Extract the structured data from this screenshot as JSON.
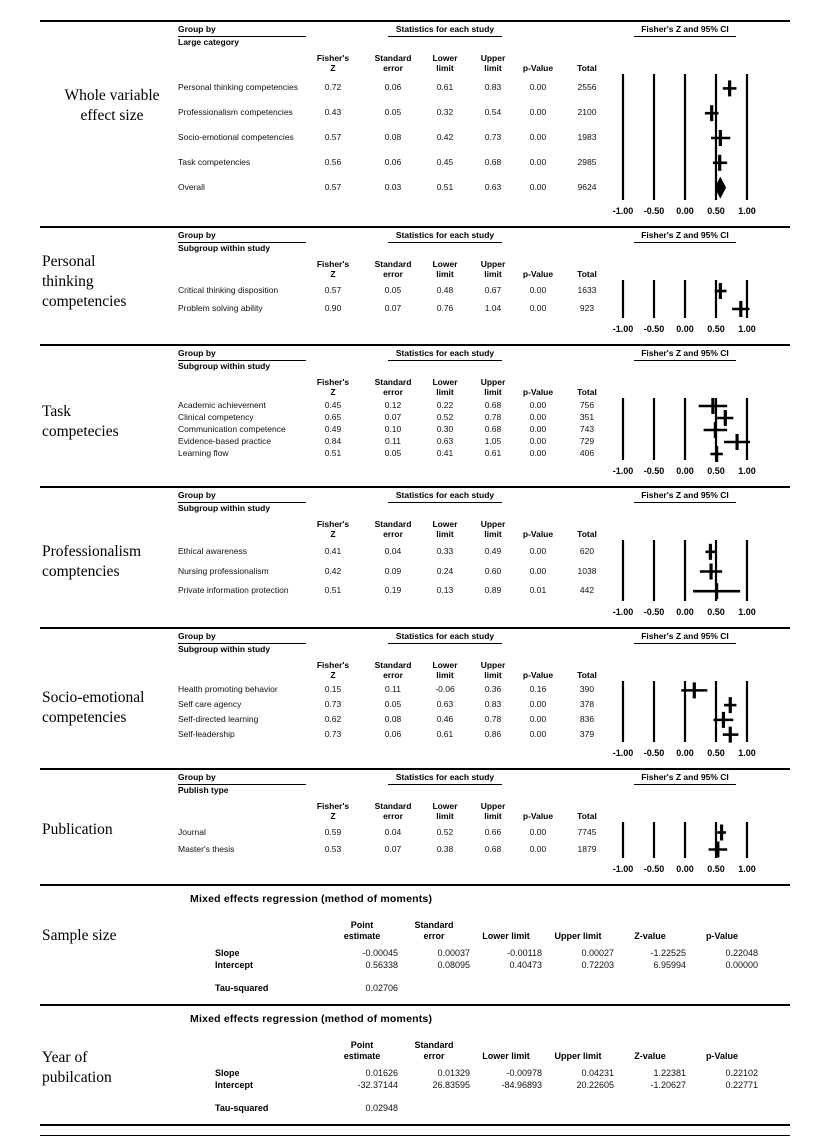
{
  "page": {
    "background": "#ffffff",
    "text_color": "#000000",
    "line_color": "#000000"
  },
  "common": {
    "group_by_label": "Group by",
    "stats_header": "Statistics for each study",
    "plot_header": "Fisher's Z and 95% CI",
    "table_columns": [
      "Fisher's\nZ",
      "Standard\nerror",
      "Lower\nlimit",
      "Upper\nlimit",
      "p-Value",
      "Total"
    ],
    "axis_ticks": [
      "-1.00",
      "-0.50",
      "0.00",
      "0.50",
      "1.00"
    ]
  },
  "chart_data": [
    {
      "type": "scatter",
      "section_label": "Whole variable\neffect size",
      "group_by": "Large category",
      "xlabel": "Fisher's Z and 95% CI",
      "xlim": [
        -1.0,
        1.0
      ],
      "x_ticks": [
        -1.0,
        -0.5,
        0.0,
        0.5,
        1.0
      ],
      "rows": [
        {
          "name": "Personal thinking competencies",
          "fishers_z": "0.72",
          "standard_error": "0.06",
          "lower_limit": "0.61",
          "upper_limit": "0.83",
          "p_value": "0.00",
          "total": "2556",
          "overall": false
        },
        {
          "name": "Professionalism competencies",
          "fishers_z": "0.43",
          "standard_error": "0.05",
          "lower_limit": "0.32",
          "upper_limit": "0.54",
          "p_value": "0.00",
          "total": "2100",
          "overall": false
        },
        {
          "name": "Socio-emotional competencies",
          "fishers_z": "0.57",
          "standard_error": "0.08",
          "lower_limit": "0.42",
          "upper_limit": "0.73",
          "p_value": "0.00",
          "total": "1983",
          "overall": false
        },
        {
          "name": "Task competencies",
          "fishers_z": "0.56",
          "standard_error": "0.06",
          "lower_limit": "0.45",
          "upper_limit": "0.68",
          "p_value": "0.00",
          "total": "2985",
          "overall": false
        },
        {
          "name": "Overall",
          "fishers_z": "0.57",
          "standard_error": "0.03",
          "lower_limit": "0.51",
          "upper_limit": "0.63",
          "p_value": "0.00",
          "total": "9624",
          "overall": true
        }
      ]
    },
    {
      "type": "scatter",
      "section_label": "Personal\nthinking\ncompetencies",
      "group_by": "Subgroup within study",
      "xlabel": "Fisher's Z and 95% CI",
      "xlim": [
        -1.0,
        1.0
      ],
      "x_ticks": [
        -1.0,
        -0.5,
        0.0,
        0.5,
        1.0
      ],
      "rows": [
        {
          "name": "Critical thinking disposition",
          "fishers_z": "0.57",
          "standard_error": "0.05",
          "lower_limit": "0.48",
          "upper_limit": "0.67",
          "p_value": "0.00",
          "total": "1633",
          "overall": false
        },
        {
          "name": "Problem solving ability",
          "fishers_z": "0.90",
          "standard_error": "0.07",
          "lower_limit": "0.76",
          "upper_limit": "1.04",
          "p_value": "0.00",
          "total": "923",
          "overall": false
        }
      ]
    },
    {
      "type": "scatter",
      "section_label": "Task\ncompetecies",
      "group_by": "Subgroup within study",
      "xlabel": "Fisher's Z and 95% CI",
      "xlim": [
        -1.0,
        1.0
      ],
      "x_ticks": [
        -1.0,
        -0.5,
        0.0,
        0.5,
        1.0
      ],
      "rows": [
        {
          "name": "Academic achievement",
          "fishers_z": "0.45",
          "standard_error": "0.12",
          "lower_limit": "0.22",
          "upper_limit": "0.68",
          "p_value": "0.00",
          "total": "756",
          "overall": false
        },
        {
          "name": "Clinical competency",
          "fishers_z": "0.65",
          "standard_error": "0.07",
          "lower_limit": "0.52",
          "upper_limit": "0.78",
          "p_value": "0.00",
          "total": "351",
          "overall": false
        },
        {
          "name": "Communication competence",
          "fishers_z": "0.49",
          "standard_error": "0.10",
          "lower_limit": "0.30",
          "upper_limit": "0.68",
          "p_value": "0.00",
          "total": "743",
          "overall": false
        },
        {
          "name": "Evidence-based practice",
          "fishers_z": "0.84",
          "standard_error": "0.11",
          "lower_limit": "0.63",
          "upper_limit": "1.05",
          "p_value": "0.00",
          "total": "729",
          "overall": false
        },
        {
          "name": "Learning flow",
          "fishers_z": "0.51",
          "standard_error": "0.05",
          "lower_limit": "0.41",
          "upper_limit": "0.61",
          "p_value": "0.00",
          "total": "406",
          "overall": false
        }
      ]
    },
    {
      "type": "scatter",
      "section_label": "Professionalism\ncomptencies",
      "group_by": "Subgroup within study",
      "xlabel": "Fisher's Z and 95% CI",
      "xlim": [
        -1.0,
        1.0
      ],
      "x_ticks": [
        -1.0,
        -0.5,
        0.0,
        0.5,
        1.0
      ],
      "rows": [
        {
          "name": "Ethical awareness",
          "fishers_z": "0.41",
          "standard_error": "0.04",
          "lower_limit": "0.33",
          "upper_limit": "0.49",
          "p_value": "0.00",
          "total": "620",
          "overall": false
        },
        {
          "name": "Nursing professionalism",
          "fishers_z": "0.42",
          "standard_error": "0.09",
          "lower_limit": "0.24",
          "upper_limit": "0.60",
          "p_value": "0.00",
          "total": "1038",
          "overall": false
        },
        {
          "name": "Private information protection",
          "fishers_z": "0.51",
          "standard_error": "0.19",
          "lower_limit": "0.13",
          "upper_limit": "0.89",
          "p_value": "0.01",
          "total": "442",
          "overall": false
        }
      ]
    },
    {
      "type": "scatter",
      "section_label": "Socio-emotional\ncompetencies",
      "group_by": "Subgroup within study",
      "xlabel": "Fisher's Z and 95% CI",
      "xlim": [
        -1.0,
        1.0
      ],
      "x_ticks": [
        -1.0,
        -0.5,
        0.0,
        0.5,
        1.0
      ],
      "rows": [
        {
          "name": "Health promoting behavior",
          "fishers_z": "0.15",
          "standard_error": "0.11",
          "lower_limit": "-0.06",
          "upper_limit": "0.36",
          "p_value": "0.16",
          "total": "390",
          "overall": false
        },
        {
          "name": "Self care agency",
          "fishers_z": "0.73",
          "standard_error": "0.05",
          "lower_limit": "0.63",
          "upper_limit": "0.83",
          "p_value": "0.00",
          "total": "378",
          "overall": false
        },
        {
          "name": "Self-directed learning",
          "fishers_z": "0.62",
          "standard_error": "0.08",
          "lower_limit": "0.46",
          "upper_limit": "0.78",
          "p_value": "0.00",
          "total": "836",
          "overall": false
        },
        {
          "name": "Self-leadership",
          "fishers_z": "0.73",
          "standard_error": "0.06",
          "lower_limit": "0.61",
          "upper_limit": "0.86",
          "p_value": "0.00",
          "total": "379",
          "overall": false
        }
      ]
    },
    {
      "type": "scatter",
      "section_label": "Publication",
      "group_by": "Publish type",
      "xlabel": "Fisher's Z and 95% CI",
      "xlim": [
        -1.0,
        1.0
      ],
      "x_ticks": [
        -1.0,
        -0.5,
        0.0,
        0.5,
        1.0
      ],
      "rows": [
        {
          "name": "Journal",
          "fishers_z": "0.59",
          "standard_error": "0.04",
          "lower_limit": "0.52",
          "upper_limit": "0.66",
          "p_value": "0.00",
          "total": "7745",
          "overall": false
        },
        {
          "name": "Master's thesis",
          "fishers_z": "0.53",
          "standard_error": "0.07",
          "lower_limit": "0.38",
          "upper_limit": "0.68",
          "p_value": "0.00",
          "total": "1879",
          "overall": false
        }
      ]
    },
    {
      "type": "table",
      "section_label": "Sample size",
      "title": "Mixed effects regression (method of moments)",
      "columns": [
        "Point\nestimate",
        "Standard\nerror",
        "Lower limit",
        "Upper limit",
        "Z-value",
        "p-Value"
      ],
      "rows": [
        {
          "name": "Slope",
          "values": [
            "-0.00045",
            "0.00037",
            "-0.00118",
            "0.00027",
            "-1.22525",
            "0.22048"
          ]
        },
        {
          "name": "Intercept",
          "values": [
            "0.56338",
            "0.08095",
            "0.40473",
            "0.72203",
            "6.95994",
            "0.00000"
          ]
        }
      ],
      "tau": {
        "name": "Tau-squared",
        "value": "0.02706"
      }
    },
    {
      "type": "table",
      "section_label": "Year of\npubilcation",
      "title": "Mixed effects regression (method of moments)",
      "columns": [
        "Point\nestimate",
        "Standard\nerror",
        "Lower limit",
        "Upper limit",
        "Z-value",
        "p-Value"
      ],
      "rows": [
        {
          "name": "Slope",
          "values": [
            "0.01626",
            "0.01329",
            "-0.00978",
            "0.04231",
            "1.22381",
            "0.22102"
          ]
        },
        {
          "name": "Intercept",
          "values": [
            "-32.37144",
            "26.83595",
            "-84.96893",
            "20.22605",
            "-1.20627",
            "0.22771"
          ]
        }
      ],
      "tau": {
        "name": "Tau-squared",
        "value": "0.02948"
      }
    }
  ]
}
